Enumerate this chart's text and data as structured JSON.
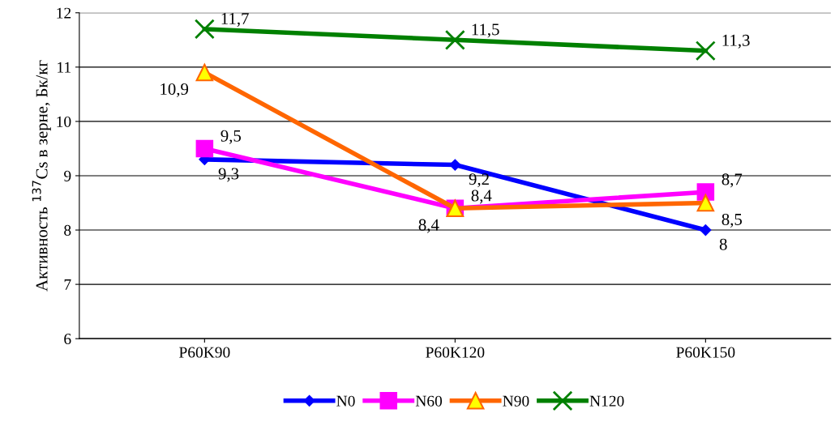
{
  "chart_data": {
    "type": "line",
    "ylabel": "Активность $^{137}$Cs в зерне, Бк/кг",
    "categories": [
      "P60K90",
      "P60K120",
      "P60K150"
    ],
    "series": [
      {
        "name": "N0",
        "color": "#0000ff",
        "marker": "diamond",
        "values": [
          9.3,
          9.2,
          8
        ],
        "value_labels": [
          "9,3",
          "9,2",
          "8"
        ]
      },
      {
        "name": "N60",
        "color": "#ff00ff",
        "marker": "square",
        "values": [
          9.5,
          8.4,
          8.7
        ],
        "value_labels": [
          "9,5",
          "8,4",
          "8,7"
        ]
      },
      {
        "name": "N90",
        "color": "#ff6600",
        "marker": "triangle",
        "values": [
          10.9,
          8.4,
          8.5
        ],
        "value_labels": [
          "10,9",
          "8,4",
          "8,5"
        ]
      },
      {
        "name": "N120",
        "color": "#008000",
        "marker": "cross",
        "values": [
          11.7,
          11.5,
          11.3
        ],
        "value_labels": [
          "11,7",
          "11,5",
          "11,3"
        ]
      }
    ],
    "ylim": [
      6,
      12
    ],
    "yticks": [
      6,
      7,
      8,
      9,
      10,
      11,
      12
    ],
    "grid": "y",
    "legend": "bottom",
    "line_style": "solid"
  }
}
